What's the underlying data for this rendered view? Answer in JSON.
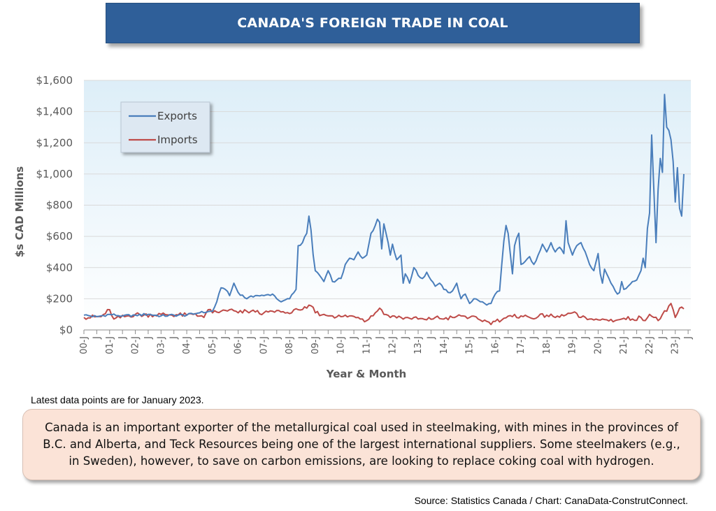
{
  "title": "CANADA'S FOREIGN TRADE IN COAL",
  "note": "Latest data points are for January 2023.",
  "callout": "Canada is an important exporter of the metallurgical coal used in steelmaking, with mines in the provinces of B.C. and Alberta, and Teck Resources being one of the largest international suppliers. Some steelmakers (e.g., in Sweden), however, to save on carbon emissions, are looking to replace coking coal with hydrogen.",
  "source": "Source: Statistics Canada / Chart: CanaData-ConstrutConnect.",
  "chart_data": {
    "type": "line",
    "title": "CANADA'S FOREIGN TRADE IN COAL",
    "xlabel": "Year & Month",
    "ylabel": "$s CAD Millions",
    "ylim": [
      0,
      1600
    ],
    "yticks": [
      0,
      200,
      400,
      600,
      800,
      1000,
      1200,
      1400,
      1600
    ],
    "ytick_labels": [
      "$0",
      "$200",
      "$400",
      "$600",
      "$800",
      "$1,000",
      "$1,200",
      "$1,400",
      "$1,600"
    ],
    "grid": true,
    "legend": "top-left",
    "year_labels": [
      "00",
      "01",
      "02",
      "03",
      "04",
      "05",
      "06",
      "07",
      "08",
      "09",
      "10",
      "11",
      "12",
      "13",
      "14",
      "15",
      "16",
      "17",
      "18",
      "19",
      "20",
      "21",
      "22",
      "23"
    ],
    "year_suffix": "-J",
    "mid_label": "J",
    "x_start": "2000-01",
    "x_end": "2023-01",
    "colors": {
      "exports": "#4a7ebb",
      "imports": "#be4b48",
      "plot_bg_top": "#ddeef8",
      "plot_bg_bottom": "#ffffff"
    },
    "series": [
      {
        "name": "Exports",
        "anchors": [
          [
            0,
            95
          ],
          [
            6,
            85
          ],
          [
            12,
            100
          ],
          [
            18,
            90
          ],
          [
            24,
            95
          ],
          [
            30,
            100
          ],
          [
            36,
            90
          ],
          [
            42,
            95
          ],
          [
            48,
            95
          ],
          [
            54,
            110
          ],
          [
            60,
            120
          ],
          [
            62,
            180
          ],
          [
            64,
            270
          ],
          [
            66,
            260
          ],
          [
            68,
            220
          ],
          [
            70,
            300
          ],
          [
            72,
            240
          ],
          [
            76,
            200
          ],
          [
            80,
            220
          ],
          [
            84,
            220
          ],
          [
            88,
            230
          ],
          [
            92,
            180
          ],
          [
            96,
            200
          ],
          [
            99,
            260
          ],
          [
            100,
            540
          ],
          [
            102,
            560
          ],
          [
            104,
            620
          ],
          [
            105,
            730
          ],
          [
            106,
            640
          ],
          [
            107,
            480
          ],
          [
            108,
            380
          ],
          [
            110,
            350
          ],
          [
            112,
            310
          ],
          [
            114,
            380
          ],
          [
            116,
            310
          ],
          [
            118,
            320
          ],
          [
            120,
            330
          ],
          [
            122,
            420
          ],
          [
            124,
            460
          ],
          [
            126,
            450
          ],
          [
            128,
            500
          ],
          [
            130,
            460
          ],
          [
            132,
            480
          ],
          [
            134,
            620
          ],
          [
            136,
            670
          ],
          [
            137,
            710
          ],
          [
            138,
            690
          ],
          [
            139,
            520
          ],
          [
            140,
            680
          ],
          [
            141,
            620
          ],
          [
            142,
            560
          ],
          [
            143,
            480
          ],
          [
            144,
            550
          ],
          [
            146,
            450
          ],
          [
            148,
            480
          ],
          [
            149,
            300
          ],
          [
            150,
            360
          ],
          [
            152,
            300
          ],
          [
            154,
            400
          ],
          [
            156,
            350
          ],
          [
            158,
            330
          ],
          [
            160,
            370
          ],
          [
            162,
            320
          ],
          [
            164,
            280
          ],
          [
            166,
            300
          ],
          [
            168,
            260
          ],
          [
            170,
            240
          ],
          [
            172,
            250
          ],
          [
            174,
            300
          ],
          [
            176,
            200
          ],
          [
            178,
            230
          ],
          [
            180,
            170
          ],
          [
            182,
            200
          ],
          [
            184,
            190
          ],
          [
            186,
            180
          ],
          [
            188,
            160
          ],
          [
            190,
            170
          ],
          [
            192,
            230
          ],
          [
            194,
            250
          ],
          [
            196,
            570
          ],
          [
            197,
            670
          ],
          [
            198,
            620
          ],
          [
            200,
            360
          ],
          [
            201,
            540
          ],
          [
            202,
            590
          ],
          [
            203,
            620
          ],
          [
            204,
            420
          ],
          [
            206,
            440
          ],
          [
            208,
            470
          ],
          [
            210,
            420
          ],
          [
            212,
            480
          ],
          [
            214,
            550
          ],
          [
            216,
            500
          ],
          [
            218,
            560
          ],
          [
            220,
            500
          ],
          [
            222,
            530
          ],
          [
            224,
            490
          ],
          [
            225,
            700
          ],
          [
            226,
            560
          ],
          [
            228,
            480
          ],
          [
            230,
            540
          ],
          [
            232,
            560
          ],
          [
            234,
            500
          ],
          [
            236,
            420
          ],
          [
            238,
            380
          ],
          [
            240,
            490
          ],
          [
            241,
            360
          ],
          [
            242,
            300
          ],
          [
            243,
            390
          ],
          [
            244,
            360
          ],
          [
            246,
            300
          ],
          [
            248,
            250
          ],
          [
            249,
            230
          ],
          [
            250,
            240
          ],
          [
            251,
            310
          ],
          [
            252,
            260
          ],
          [
            254,
            280
          ],
          [
            256,
            310
          ],
          [
            258,
            320
          ],
          [
            260,
            380
          ],
          [
            261,
            460
          ],
          [
            262,
            400
          ],
          [
            263,
            650
          ],
          [
            264,
            750
          ],
          [
            265,
            1250
          ],
          [
            266,
            900
          ],
          [
            267,
            560
          ],
          [
            268,
            900
          ],
          [
            269,
            1100
          ],
          [
            270,
            1010
          ],
          [
            271,
            1510
          ],
          [
            272,
            1300
          ],
          [
            273,
            1280
          ],
          [
            274,
            1220
          ],
          [
            275,
            1080
          ],
          [
            276,
            820
          ],
          [
            277,
            1040
          ],
          [
            278,
            780
          ],
          [
            279,
            730
          ],
          [
            280,
            1000
          ]
        ],
        "noise_amplitude": 8
      },
      {
        "name": "Imports",
        "anchors": [
          [
            0,
            80
          ],
          [
            8,
            85
          ],
          [
            12,
            130
          ],
          [
            14,
            70
          ],
          [
            24,
            100
          ],
          [
            28,
            95
          ],
          [
            36,
            100
          ],
          [
            48,
            95
          ],
          [
            52,
            105
          ],
          [
            56,
            80
          ],
          [
            58,
            130
          ],
          [
            60,
            110
          ],
          [
            64,
            120
          ],
          [
            68,
            130
          ],
          [
            72,
            110
          ],
          [
            76,
            120
          ],
          [
            80,
            115
          ],
          [
            84,
            110
          ],
          [
            88,
            120
          ],
          [
            92,
            115
          ],
          [
            96,
            105
          ],
          [
            100,
            130
          ],
          [
            104,
            140
          ],
          [
            106,
            155
          ],
          [
            108,
            110
          ],
          [
            112,
            100
          ],
          [
            116,
            90
          ],
          [
            120,
            85
          ],
          [
            124,
            90
          ],
          [
            128,
            80
          ],
          [
            130,
            70
          ],
          [
            132,
            60
          ],
          [
            134,
            90
          ],
          [
            136,
            110
          ],
          [
            138,
            140
          ],
          [
            140,
            100
          ],
          [
            144,
            90
          ],
          [
            148,
            80
          ],
          [
            152,
            75
          ],
          [
            156,
            70
          ],
          [
            160,
            65
          ],
          [
            164,
            80
          ],
          [
            168,
            70
          ],
          [
            172,
            80
          ],
          [
            176,
            90
          ],
          [
            180,
            80
          ],
          [
            184,
            70
          ],
          [
            188,
            55
          ],
          [
            190,
            35
          ],
          [
            192,
            55
          ],
          [
            196,
            75
          ],
          [
            200,
            85
          ],
          [
            204,
            90
          ],
          [
            208,
            80
          ],
          [
            212,
            85
          ],
          [
            216,
            95
          ],
          [
            220,
            80
          ],
          [
            224,
            90
          ],
          [
            228,
            110
          ],
          [
            232,
            80
          ],
          [
            236,
            70
          ],
          [
            240,
            65
          ],
          [
            244,
            65
          ],
          [
            248,
            60
          ],
          [
            252,
            75
          ],
          [
            256,
            70
          ],
          [
            260,
            80
          ],
          [
            262,
            60
          ],
          [
            264,
            100
          ],
          [
            266,
            80
          ],
          [
            268,
            60
          ],
          [
            270,
            100
          ],
          [
            272,
            120
          ],
          [
            274,
            170
          ],
          [
            276,
            80
          ],
          [
            278,
            140
          ],
          [
            280,
            135
          ]
        ],
        "noise_amplitude": 14
      }
    ]
  }
}
